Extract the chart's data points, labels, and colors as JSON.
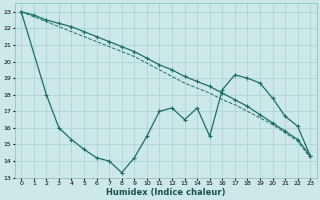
{
  "xlabel": "Humidex (Indice chaleur)",
  "bg_color": "#cce8e8",
  "grid_color": "#aad0d0",
  "line_color": "#1a6e6a",
  "xlim": [
    -0.5,
    23.5
  ],
  "ylim": [
    13,
    23.5
  ],
  "yticks": [
    13,
    14,
    15,
    16,
    17,
    18,
    19,
    20,
    21,
    22,
    23
  ],
  "xticks": [
    0,
    1,
    2,
    3,
    4,
    5,
    6,
    7,
    8,
    9,
    10,
    11,
    12,
    13,
    14,
    15,
    16,
    17,
    18,
    19,
    20,
    21,
    22,
    23
  ],
  "line1_x": [
    0,
    1,
    2,
    3,
    4,
    5,
    6,
    7,
    8,
    9,
    10,
    11,
    12,
    13,
    14,
    15,
    16,
    17,
    18,
    19,
    20,
    21,
    22,
    23
  ],
  "line1_y": [
    23,
    22.8,
    22.5,
    22.3,
    22.1,
    21.8,
    21.5,
    21.2,
    20.9,
    20.6,
    20.2,
    19.8,
    19.5,
    19.1,
    18.8,
    18.5,
    18.1,
    17.7,
    17.3,
    16.8,
    16.3,
    15.8,
    15.3,
    14.3
  ],
  "line2_x": [
    0,
    1,
    2,
    3,
    4,
    5,
    6,
    7,
    8,
    9,
    10,
    11,
    12,
    13,
    14,
    15,
    16,
    17,
    18,
    19,
    20,
    21,
    22,
    23
  ],
  "line2_y": [
    23,
    22.7,
    22.4,
    22.1,
    21.8,
    21.5,
    21.2,
    20.9,
    20.6,
    20.3,
    19.9,
    19.5,
    19.1,
    18.7,
    18.4,
    18.1,
    17.7,
    17.4,
    17.0,
    16.6,
    16.2,
    15.7,
    15.2,
    14.2
  ],
  "line3_x": [
    0,
    2,
    3,
    4,
    5,
    6,
    7,
    8,
    9,
    10,
    11,
    12,
    13,
    14,
    15,
    16,
    17,
    18,
    19,
    20,
    21,
    22,
    23
  ],
  "line3_y": [
    23,
    18.0,
    16.0,
    15.3,
    14.7,
    14.2,
    14.0,
    13.3,
    14.2,
    15.5,
    17.0,
    17.2,
    16.5,
    17.2,
    15.5,
    18.3,
    19.2,
    19.0,
    18.7,
    17.8,
    16.7,
    16.1,
    14.3
  ]
}
